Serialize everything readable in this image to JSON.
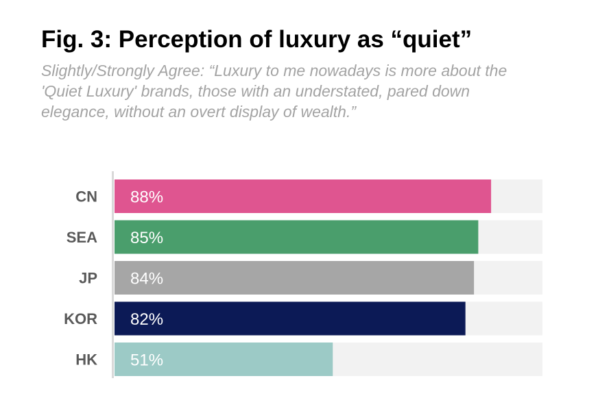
{
  "chart_data": {
    "type": "bar",
    "orientation": "horizontal",
    "title": "Fig. 3: Perception of luxury as “quiet”",
    "subtitle": "Slightly/Strongly Agree: “Luxury to me nowadays is more about the 'Quiet Luxury' brands, those with an understated, pared down elegance, without an overt display of wealth.”",
    "categories": [
      "CN",
      "SEA",
      "JP",
      "KOR",
      "HK"
    ],
    "values": [
      88,
      85,
      84,
      82,
      51
    ],
    "value_labels": [
      "88%",
      "85%",
      "84%",
      "82%",
      "51%"
    ],
    "xlim": [
      0,
      100
    ],
    "unit": "%",
    "grid": false,
    "legend": "none",
    "colors": [
      "#df5590",
      "#4a9e6c",
      "#a6a6a6",
      "#0c1a56",
      "#9ccac6"
    ],
    "track_color": "#f2f2f2",
    "axis_color": "#d9d9d9"
  }
}
